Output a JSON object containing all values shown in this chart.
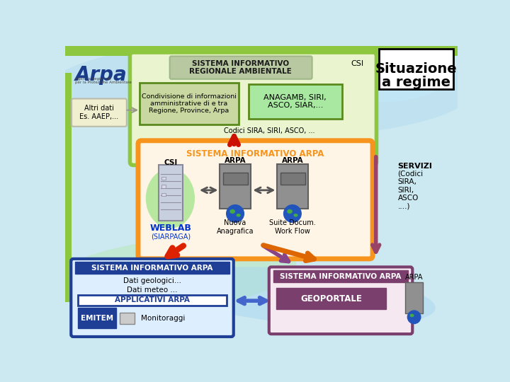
{
  "bg_color": "#cce8f0",
  "title_situazione_line1": "Situazione",
  "title_situazione_line2": "a regime",
  "main_box_title": "SISTEMA INFORMATIVO\nREGIONALE AMBIENTALE",
  "csi_label": "CSI",
  "condiv_text": "Condivisione di informazioni\namministrative di e tra\nRegione, Province, Arpa",
  "anag_text": "ANAGAMB, SIRI,\nASCO, SIAR,...",
  "altri_dati_text": "Altri dati\nEs. AAEP,...",
  "codici_text": "Codici SIRA, SIRI, ASCO, ...",
  "orange_box_title": "SISTEMA INFORMATIVO ARPA",
  "weblab_label": "WEBLAB",
  "weblab_sub": "(SIARPAGA)",
  "csi_computer_label": "CSI",
  "arpa_label1": "ARPA",
  "arpa_label2": "ARPA",
  "nuova_text": "Nuova\nAnagrafica",
  "suite_text": "Suite Docum.\nWork Flow",
  "servizi_text": "SERVIZI",
  "servizi_sub": "(Codici\nSIRA,\nSIRI,\nASCO\n....)",
  "blue_box_title": "SISTEMA INFORMATIVO ARPA",
  "dati_geo": "Dati geologici...",
  "dati_meteo": "Dati meteo ...",
  "applic_text": "APPLICATIVI ARPA",
  "emitem_text": "EMITEM",
  "monit_text": "Monitoraggi",
  "purple_box_title": "SISTEMA INFORMATIVO ARPA",
  "geoportale_text": "GEOPORTALE",
  "arpa_bottom": "ARPA",
  "green_stripe_color": "#8dc63f",
  "orange_color": "#f7941d",
  "blue_color": "#1f3f96",
  "purple_color": "#7b3f6e",
  "dark_green": "#5a8a1e",
  "light_green_bg": "#eaf5d0",
  "light_orange_bg": "#fff5e6",
  "light_blue_bg": "#ddeeff",
  "light_purple_bg": "#f5e8f0"
}
